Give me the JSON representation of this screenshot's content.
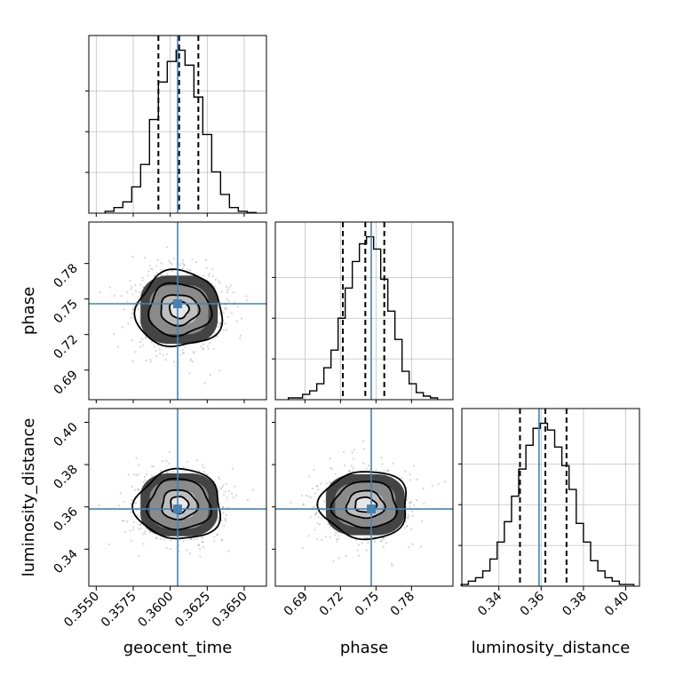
{
  "chart_data": {
    "type": "corner",
    "parameters": [
      "geocent_time",
      "phase",
      "luminosity_distance"
    ],
    "axis_labels": {
      "x": [
        "geocent_time",
        "phase",
        "luminosity_distance"
      ],
      "y_rows": [
        "",
        "phase",
        "luminosity_distance"
      ]
    },
    "ranges": {
      "geocent_time": [
        0.3545,
        0.3665
      ],
      "phase": [
        0.665,
        0.815
      ],
      "luminosity_distance": [
        0.3225,
        0.4065
      ]
    },
    "ticks": {
      "geocent_time": [
        "0.3550",
        "0.3575",
        "0.3600",
        "0.3625",
        "0.3650"
      ],
      "phase": [
        "0.69",
        "0.72",
        "0.75",
        "0.78"
      ],
      "luminosity_distance": [
        "0.34",
        "0.36",
        "0.38",
        "0.40"
      ]
    },
    "truths": {
      "geocent_time": 0.3605,
      "phase": 0.746,
      "luminosity_distance": 0.359
    },
    "quantiles": {
      "geocent_time": [
        0.3592,
        0.3606,
        0.3619
      ],
      "phase": [
        0.722,
        0.741,
        0.757
      ],
      "luminosity_distance": [
        0.35,
        0.362,
        0.372
      ]
    },
    "histograms": {
      "geocent_time": {
        "bin_edges": [
          0.3556,
          0.3562,
          0.3568,
          0.3574,
          0.358,
          0.3586,
          0.3592,
          0.3598,
          0.3604,
          0.361,
          0.3616,
          0.3622,
          0.3628,
          0.3634,
          0.364,
          0.3646,
          0.3652,
          0.3658
        ],
        "counts": [
          1,
          3,
          6,
          14,
          26,
          50,
          70,
          81,
          87,
          79,
          62,
          42,
          22,
          10,
          3,
          1,
          0.3
        ]
      },
      "phase": {
        "bin_edges": [
          0.676,
          0.682,
          0.688,
          0.694,
          0.7,
          0.706,
          0.712,
          0.718,
          0.724,
          0.73,
          0.736,
          0.742,
          0.748,
          0.754,
          0.76,
          0.766,
          0.772,
          0.778,
          0.784,
          0.79,
          0.796,
          0.802
        ],
        "counts": [
          1,
          1,
          3,
          5,
          9,
          18,
          28,
          46,
          63,
          78,
          88,
          92,
          85,
          68,
          50,
          34,
          16,
          9,
          4,
          2,
          1
        ]
      },
      "luminosity_distance": {
        "bin_edges": [
          0.3222,
          0.3256,
          0.329,
          0.3324,
          0.3358,
          0.3392,
          0.3426,
          0.346,
          0.3494,
          0.3528,
          0.3562,
          0.3596,
          0.363,
          0.3664,
          0.3698,
          0.3732,
          0.3766,
          0.38,
          0.3834,
          0.3868,
          0.3902,
          0.3936,
          0.397,
          0.4004,
          0.4038
        ],
        "counts": [
          1,
          3,
          5,
          9,
          16,
          26,
          38,
          53,
          69,
          83,
          93,
          96,
          92,
          82,
          71,
          57,
          37,
          26,
          15,
          9,
          5,
          3,
          1,
          1
        ]
      }
    },
    "joint_2d": [
      {
        "x": "geocent_time",
        "y": "phase",
        "center": [
          0.3606,
          0.741
        ],
        "contour_half_widths": [
          [
            0.00065,
            0.007
          ],
          [
            0.0013,
            0.013
          ],
          [
            0.0021,
            0.022
          ],
          [
            0.0029,
            0.032
          ]
        ]
      },
      {
        "x": "geocent_time",
        "y": "luminosity_distance",
        "center": [
          0.3606,
          0.361
        ],
        "contour_half_widths": [
          [
            0.0006,
            0.004
          ],
          [
            0.0012,
            0.007
          ],
          [
            0.0021,
            0.012
          ],
          [
            0.0029,
            0.0165
          ]
        ]
      },
      {
        "x": "phase",
        "y": "luminosity_distance",
        "center": [
          0.741,
          0.361
        ],
        "contour_half_widths": [
          [
            0.009,
            0.0035
          ],
          [
            0.016,
            0.0065
          ],
          [
            0.027,
            0.011
          ],
          [
            0.037,
            0.016
          ]
        ]
      }
    ],
    "colors": {
      "truth": "#4682b4",
      "histogram": "#000000",
      "grid": "#c0c0c0"
    },
    "grid": true
  }
}
